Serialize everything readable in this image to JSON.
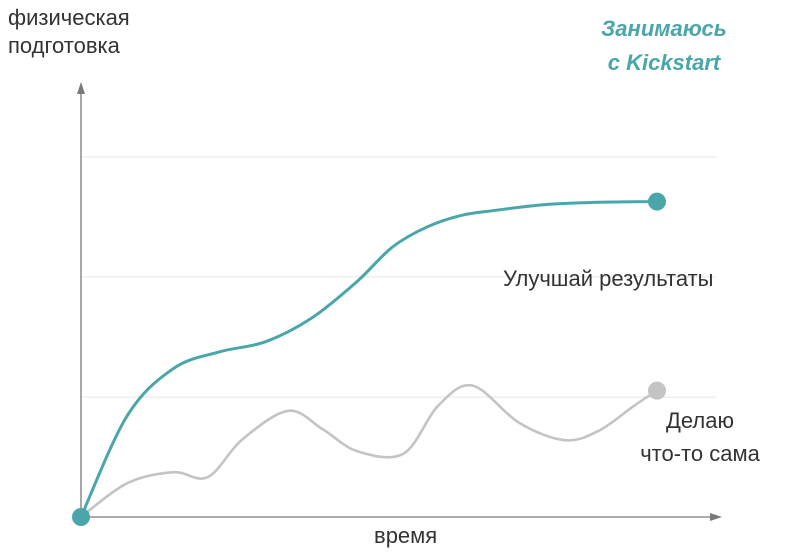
{
  "chart_data": {
    "type": "line",
    "ylabel_lines": [
      "физическая",
      "подготовка"
    ],
    "xlabel": "время",
    "annotation": "Улучшай результаты",
    "xlim": [
      0,
      100
    ],
    "ylim": [
      0,
      100
    ],
    "grid": true,
    "yticks": [
      0,
      33.3,
      66.7,
      100
    ],
    "series": [
      {
        "name_lines": [
          "Занимаюсь",
          "с Kickstart"
        ],
        "color": "#4aa6a8",
        "x": [
          0,
          8,
          16,
          24,
          32,
          40,
          48,
          54,
          60,
          66,
          72,
          80,
          88,
          94,
          100
        ],
        "y": [
          0,
          30,
          44,
          49,
          52,
          59,
          70,
          80,
          86,
          89.5,
          91,
          92.6,
          93.3,
          93.5,
          93.6
        ]
      },
      {
        "name_lines": [
          "Делаю",
          "что-то сама"
        ],
        "color": "#c4c4c4",
        "x": [
          0,
          8,
          16,
          22,
          28,
          36,
          42,
          48,
          56,
          62,
          68,
          76,
          84,
          90,
          96,
          100
        ],
        "y": [
          0,
          10,
          13.3,
          11.8,
          23,
          31.5,
          26,
          19.5,
          18.8,
          33,
          39,
          28,
          22.8,
          25.7,
          33,
          37.5
        ]
      }
    ]
  }
}
